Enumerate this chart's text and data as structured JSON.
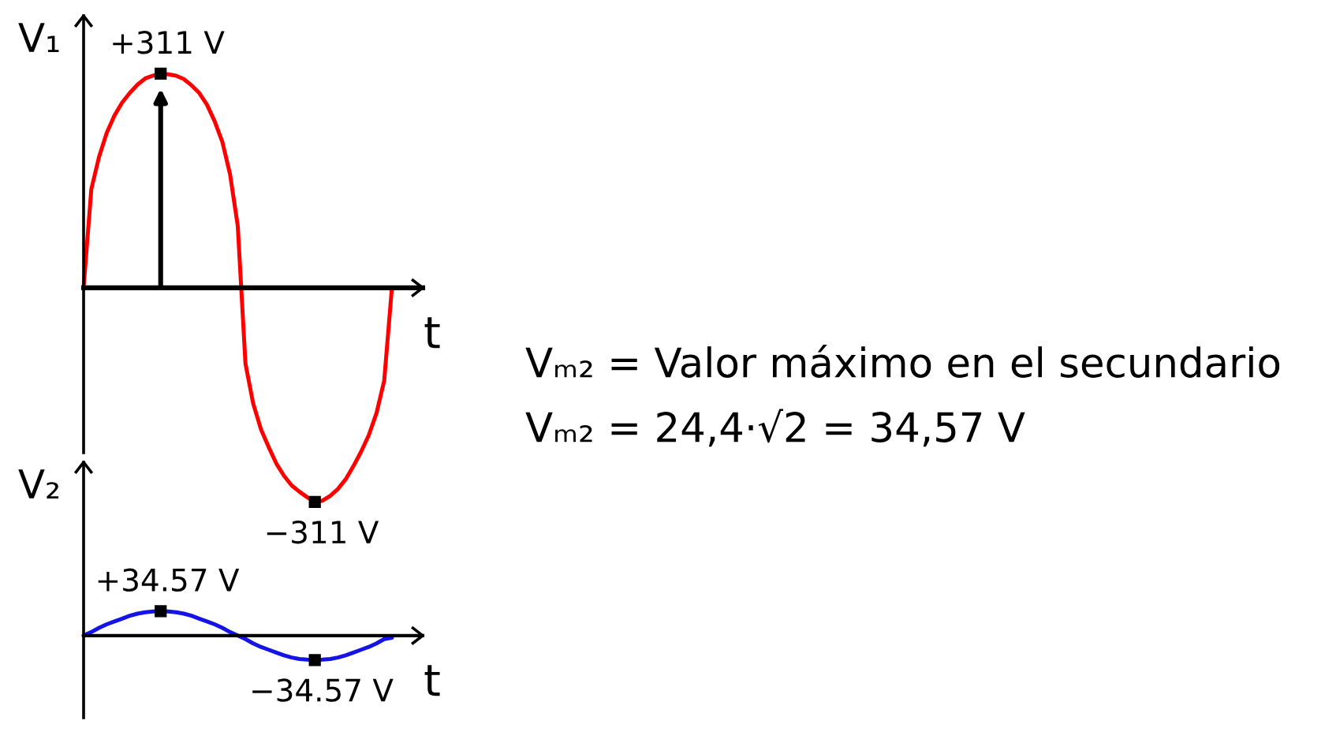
{
  "chart_data": [
    {
      "type": "line",
      "ylabel": "V₁",
      "xlabel": "t",
      "tick_labels": false,
      "categories": [
        null,
        null,
        null,
        null,
        null,
        null,
        null,
        null,
        null,
        null,
        null,
        null,
        null,
        null,
        null,
        null,
        null,
        null,
        null,
        null,
        null,
        null,
        null,
        null,
        null,
        null,
        null,
        null,
        null,
        null,
        null,
        null,
        null,
        null,
        null,
        null,
        null,
        null,
        null,
        null,
        null
      ],
      "series": [
        {
          "color": "#ff0000",
          "values": [
            0,
            143,
            190,
            225,
            250,
            269,
            283,
            295,
            304,
            308,
            311,
            310,
            308,
            303,
            294,
            283,
            266,
            242,
            212,
            165,
            90,
            -110,
            -168,
            -205,
            -231,
            -255,
            -273,
            -287,
            -296,
            -304,
            -311,
            -309,
            -302,
            -292,
            -278,
            -259,
            -238,
            -214,
            -182,
            -135,
            0
          ],
          "value_labels": [
            null,
            null,
            null,
            null,
            null,
            null,
            null,
            null,
            null,
            null,
            "+311 V",
            null,
            null,
            null,
            null,
            null,
            null,
            null,
            null,
            null,
            null,
            null,
            null,
            null,
            null,
            null,
            null,
            null,
            null,
            null,
            "−311 V",
            null,
            null,
            null,
            null,
            null,
            null,
            null,
            null,
            null,
            null
          ]
        }
      ]
    },
    {
      "type": "line",
      "ylabel": "V₂",
      "xlabel": "t",
      "tick_labels": false,
      "categories": [
        null,
        null,
        null,
        null,
        null,
        null,
        null,
        null,
        null,
        null,
        null,
        null,
        null,
        null,
        null,
        null,
        null,
        null,
        null,
        null,
        null,
        null,
        null,
        null,
        null,
        null,
        null,
        null,
        null,
        null,
        null,
        null,
        null,
        null,
        null,
        null,
        null,
        null,
        null,
        null,
        null
      ],
      "series": [
        {
          "color": "#1414e6",
          "values": [
            0,
            5,
            11,
            16,
            20,
            24,
            28,
            31,
            33,
            34,
            34.57,
            34,
            33,
            31,
            28,
            24,
            20,
            16,
            11,
            5,
            0,
            -5,
            -11,
            -16,
            -20,
            -24,
            -28,
            -31,
            -33,
            -34,
            -34.57,
            -34,
            -33,
            -31,
            -28,
            -24,
            -20,
            -16,
            -11,
            -5,
            -3
          ],
          "value_labels": [
            null,
            null,
            null,
            null,
            null,
            null,
            null,
            null,
            null,
            null,
            "+34.57 V",
            null,
            null,
            null,
            null,
            null,
            null,
            null,
            null,
            null,
            null,
            null,
            null,
            null,
            null,
            null,
            null,
            null,
            null,
            null,
            "−34.57 V",
            null,
            null,
            null,
            null,
            null,
            null,
            null,
            null,
            null,
            null
          ]
        }
      ],
      "annotations": [
        "Vₘ₂ = Valor máximo en el secundario",
        "Vₘ₂ = 24,4·√2 = 34,57 V"
      ]
    }
  ]
}
